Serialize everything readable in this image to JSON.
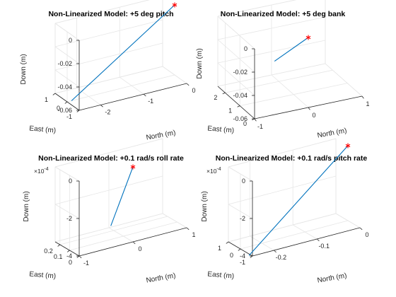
{
  "chart_data": [
    {
      "type": "line3d",
      "title": "Non-Linearized Model: +5 deg pitch",
      "xlabel": "North (m)",
      "ylabel": "East (m)",
      "zlabel": "Down (m)",
      "xlim": [
        -2.5,
        0
      ],
      "ylim": [
        -1,
        1
      ],
      "zlim": [
        -0.06,
        0
      ],
      "xticks": [
        "-2",
        "-1",
        "0"
      ],
      "xtick_values": [
        -2,
        -1,
        0
      ],
      "yticks": [
        "-1",
        "0",
        "1"
      ],
      "ytick_values": [
        -1,
        0,
        1
      ],
      "zticks": [
        "-0.06",
        "-0.04",
        "-0.02",
        "0"
      ],
      "ztick_values": [
        -0.06,
        -0.04,
        -0.02,
        0
      ],
      "zexponent": "",
      "series": [
        {
          "x": [
            -2.4,
            0
          ],
          "y": [
            0,
            0
          ],
          "z": [
            -0.06,
            0
          ]
        }
      ],
      "marker": {
        "x": 0,
        "y": 0,
        "z": 0,
        "symbol": "*"
      }
    },
    {
      "type": "line3d",
      "title": "Non-Linearized Model: +5 deg bank",
      "xlabel": "North (m)",
      "ylabel": "East (m)",
      "zlabel": "Down (m)",
      "xlim": [
        -1,
        1
      ],
      "ylim": [
        0,
        2.5
      ],
      "zlim": [
        -0.06,
        0
      ],
      "xticks": [
        "-1",
        "0",
        "1"
      ],
      "xtick_values": [
        -1,
        0,
        1
      ],
      "yticks": [
        "0",
        "1",
        "2"
      ],
      "ytick_values": [
        0,
        1,
        2
      ],
      "zticks": [
        "-0.06",
        "-0.04",
        "-0.02",
        "0"
      ],
      "ztick_values": [
        -0.06,
        -0.04,
        -0.02,
        0
      ],
      "zexponent": "",
      "series": [
        {
          "x": [
            0,
            0
          ],
          "y": [
            2.3,
            0
          ],
          "z": [
            -0.046,
            0
          ]
        }
      ],
      "marker": {
        "x": 0,
        "y": 0,
        "z": 0,
        "symbol": "*"
      }
    },
    {
      "type": "line3d",
      "title": "Non-Linearized Model: +0.1 rad/s roll rate",
      "xlabel": "North (m)",
      "ylabel": "East (m)",
      "zlabel": "Down (m)",
      "xlim": [
        -1,
        1
      ],
      "ylim": [
        0,
        0.25
      ],
      "zlim": [
        -0.0004,
        0
      ],
      "xticks": [
        "-1",
        "0",
        "1"
      ],
      "xtick_values": [
        -1,
        0,
        1
      ],
      "yticks": [
        "0",
        "0.1",
        "0.2"
      ],
      "ytick_values": [
        0,
        0.1,
        0.2
      ],
      "zticks": [
        "-4",
        "-2",
        "0"
      ],
      "ztick_values": [
        -0.0004,
        -0.0002,
        0
      ],
      "zexponent": "×10",
      "zexponent_power": "-4",
      "series": [
        {
          "x": [
            0,
            0
          ],
          "y": [
            0.23,
            0
          ],
          "z": [
            -0.000384,
            0
          ]
        }
      ],
      "marker": {
        "x": 0,
        "y": 0,
        "z": 0,
        "symbol": "*"
      }
    },
    {
      "type": "line3d",
      "title": "Non-Linearized Model: +0.1 rad/s pitch rate",
      "xlabel": "North (m)",
      "ylabel": "East (m)",
      "zlabel": "Down (m)",
      "xlim": [
        -0.25,
        0
      ],
      "ylim": [
        -1,
        1
      ],
      "zlim": [
        -0.0004,
        0
      ],
      "xticks": [
        "-0.2",
        "-0.1",
        "0"
      ],
      "xtick_values": [
        -0.2,
        -0.1,
        0
      ],
      "yticks": [
        "-1",
        "0",
        "1"
      ],
      "ytick_values": [
        -1,
        0,
        1
      ],
      "zticks": [
        "-4",
        "-2",
        "0"
      ],
      "ztick_values": [
        -0.0004,
        -0.0002,
        0
      ],
      "zexponent": "×10",
      "zexponent_power": "-4",
      "series": [
        {
          "x": [
            -0.23,
            0
          ],
          "y": [
            0,
            0
          ],
          "z": [
            -0.000447,
            0
          ]
        }
      ],
      "marker": {
        "x": 0,
        "y": 0,
        "z": 0,
        "symbol": "*"
      }
    }
  ]
}
